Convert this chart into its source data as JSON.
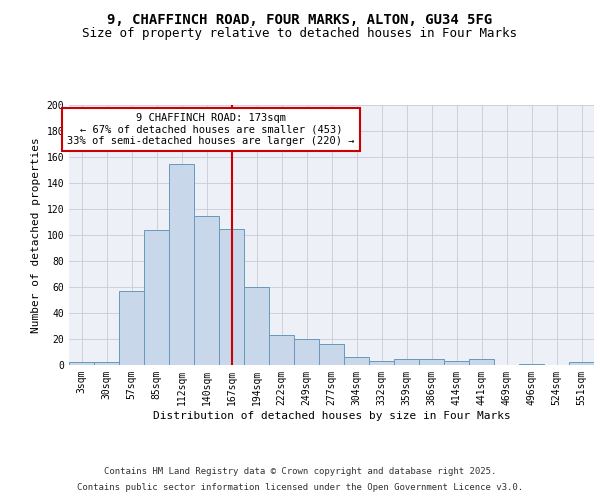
{
  "title_line1": "9, CHAFFINCH ROAD, FOUR MARKS, ALTON, GU34 5FG",
  "title_line2": "Size of property relative to detached houses in Four Marks",
  "xlabel": "Distribution of detached houses by size in Four Marks",
  "ylabel": "Number of detached properties",
  "categories": [
    "3sqm",
    "30sqm",
    "57sqm",
    "85sqm",
    "112sqm",
    "140sqm",
    "167sqm",
    "194sqm",
    "222sqm",
    "249sqm",
    "277sqm",
    "304sqm",
    "332sqm",
    "359sqm",
    "386sqm",
    "414sqm",
    "441sqm",
    "469sqm",
    "496sqm",
    "524sqm",
    "551sqm"
  ],
  "values": [
    2,
    2,
    57,
    104,
    155,
    115,
    105,
    60,
    23,
    20,
    16,
    6,
    3,
    5,
    5,
    3,
    5,
    0,
    1,
    0,
    2
  ],
  "bar_color": "#c8d8ea",
  "bar_edge_color": "#6699bb",
  "vline_x": 6,
  "vline_color": "#cc0000",
  "annotation_text": "9 CHAFFINCH ROAD: 173sqm\n← 67% of detached houses are smaller (453)\n33% of semi-detached houses are larger (220) →",
  "annotation_box_color": "#cc0000",
  "annotation_fill": "#ffffff",
  "ylim": [
    0,
    200
  ],
  "yticks": [
    0,
    20,
    40,
    60,
    80,
    100,
    120,
    140,
    160,
    180,
    200
  ],
  "grid_color": "#c8ccd8",
  "background_color": "#eef0f8",
  "footer_line1": "Contains HM Land Registry data © Crown copyright and database right 2025.",
  "footer_line2": "Contains public sector information licensed under the Open Government Licence v3.0.",
  "title_fontsize": 10,
  "subtitle_fontsize": 9,
  "axis_label_fontsize": 8,
  "tick_fontsize": 7,
  "annotation_fontsize": 7.5,
  "footer_fontsize": 6.5
}
